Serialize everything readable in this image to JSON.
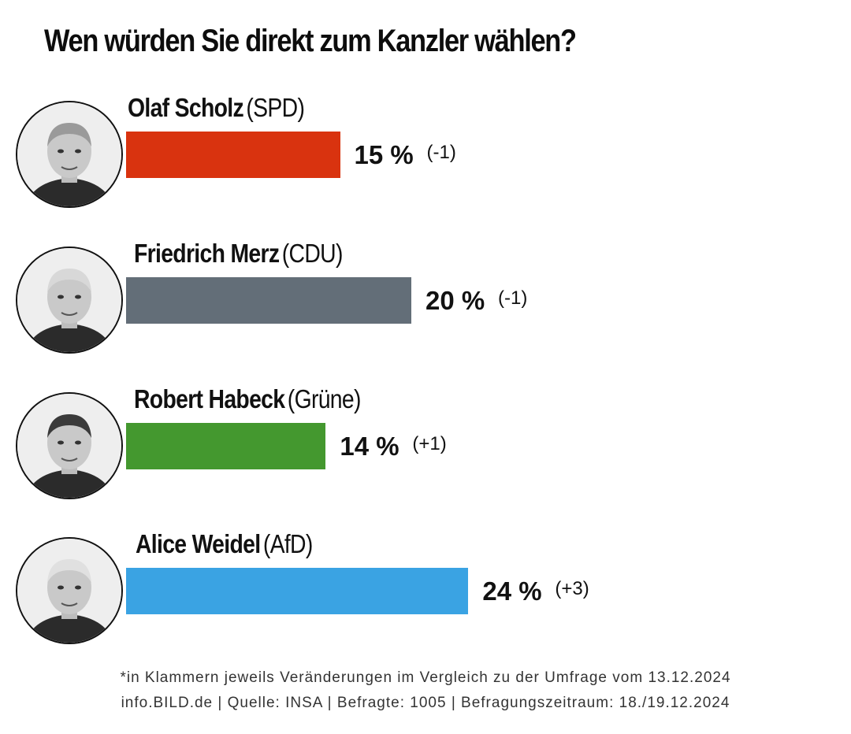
{
  "chart_data": {
    "type": "bar",
    "title": "Wen würden Sie direkt zum Kanzler wählen?",
    "unit": "%",
    "series": [
      {
        "name": "Olaf Scholz",
        "party": "(SPD)",
        "value": 15,
        "value_label": "15 %",
        "change": "(-1)",
        "color": "#d9330f"
      },
      {
        "name": "Friedrich Merz",
        "party": "(CDU)",
        "value": 20,
        "value_label": "20 %",
        "change": "(-1)",
        "color": "#636e78"
      },
      {
        "name": "Robert Habeck",
        "party": "(Grüne)",
        "value": 14,
        "value_label": "14 %",
        "change": "(+1)",
        "color": "#44982f"
      },
      {
        "name": "Alice Weidel",
        "party": "(AfD)",
        "value": 24,
        "value_label": "24 %",
        "change": "(+3)",
        "color": "#3aa3e3"
      }
    ],
    "footnote_1": "*in Klammern jeweils Veränderungen im Vergleich zu der Umfrage vom 13.12.2024",
    "footnote_2": "info.BILD.de | Quelle: INSA | Befragte: 1005 | Befragungszeitraum: 18./19.12.2024"
  }
}
